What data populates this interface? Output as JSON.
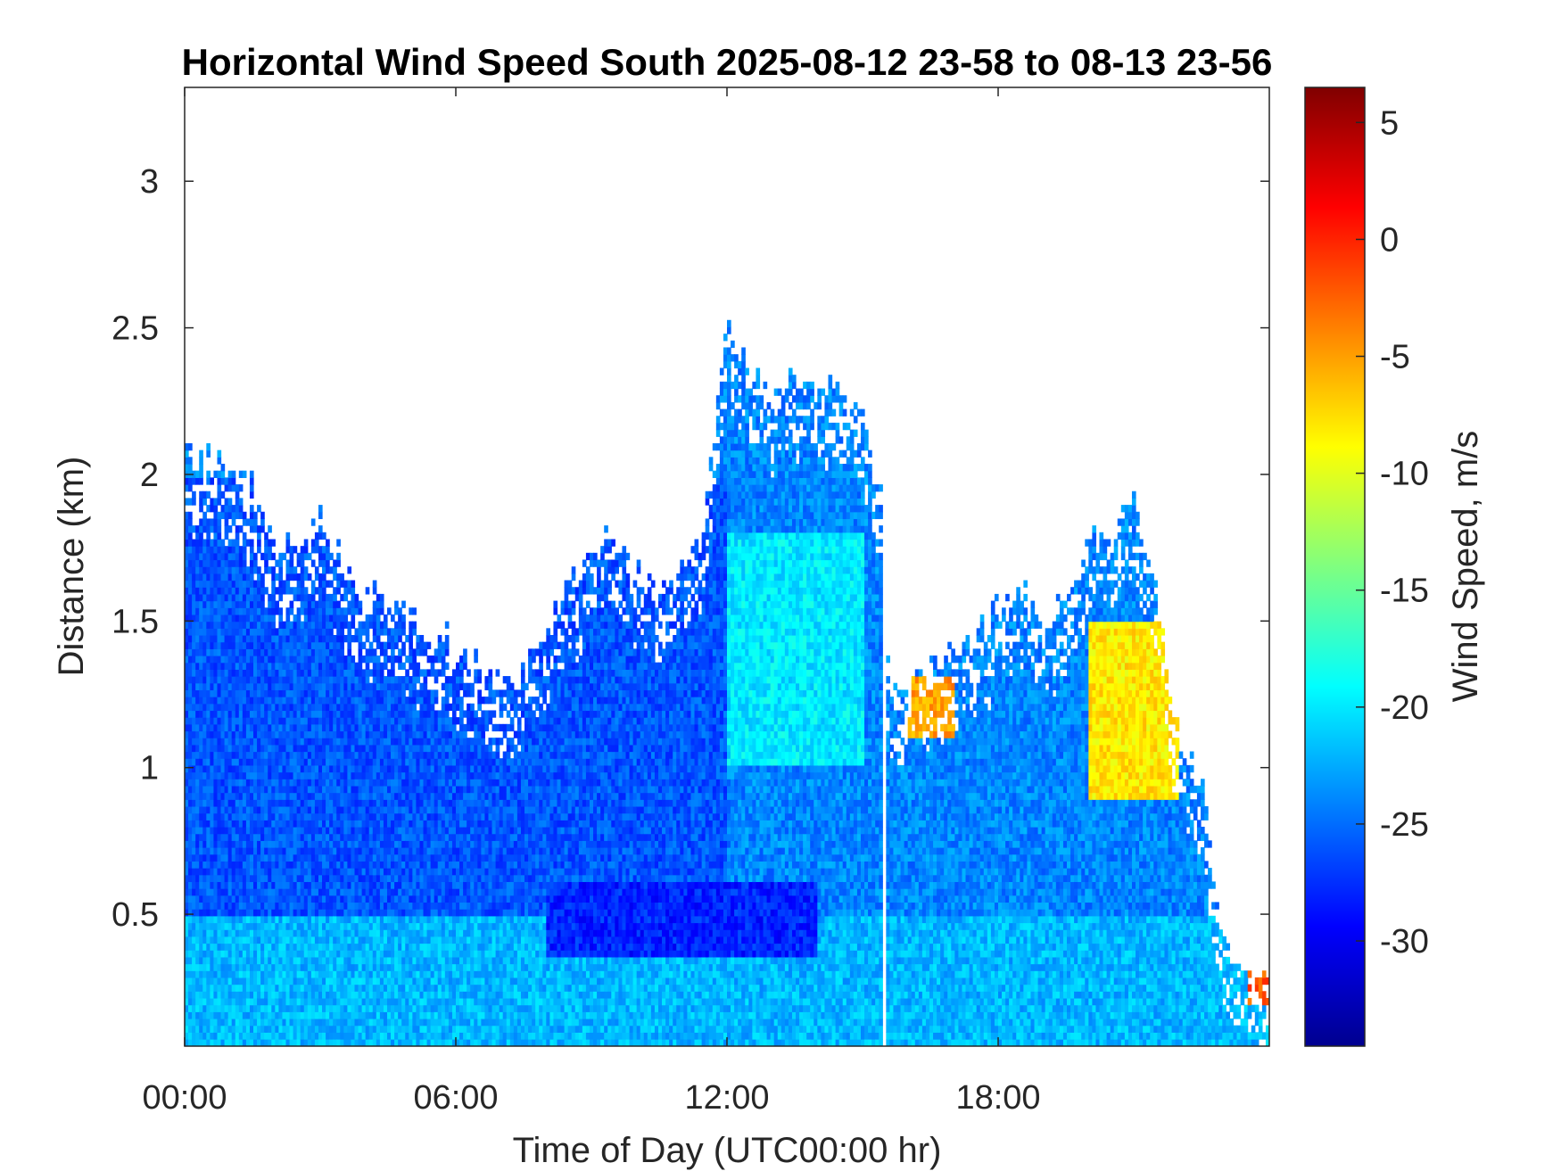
{
  "chart_data": {
    "type": "heatmap",
    "title": "Horizontal Wind Speed South 2025-08-12 23-58 to 08-13 23-56",
    "xlabel": "Time of Day (UTC00:00 hr)",
    "ylabel": "Distance (km)",
    "colorbar_label": "Wind Speed, m/s",
    "colormap": "jet",
    "x_unit": "hours",
    "xlim": [
      0,
      24
    ],
    "ylim": [
      0.05,
      3.32
    ],
    "clim": [
      -34.5,
      6.5
    ],
    "x_ticks": [
      {
        "value": 0,
        "label": "00:00"
      },
      {
        "value": 6,
        "label": "06:00"
      },
      {
        "value": 12,
        "label": "12:00"
      },
      {
        "value": 18,
        "label": "18:00"
      }
    ],
    "y_ticks": [
      {
        "value": 0.5,
        "label": "0.5"
      },
      {
        "value": 1,
        "label": "1"
      },
      {
        "value": 1.5,
        "label": "1.5"
      },
      {
        "value": 2,
        "label": "2"
      },
      {
        "value": 2.5,
        "label": "2.5"
      },
      {
        "value": 3,
        "label": "3"
      }
    ],
    "colorbar_ticks": [
      {
        "value": 5,
        "label": "5"
      },
      {
        "value": 0,
        "label": "0"
      },
      {
        "value": -5,
        "label": "-5"
      },
      {
        "value": -10,
        "label": "-10"
      },
      {
        "value": -15,
        "label": "-15"
      },
      {
        "value": -20,
        "label": "-20"
      },
      {
        "value": -25,
        "label": "-25"
      },
      {
        "value": -30,
        "label": "-30"
      }
    ],
    "data_top_profile": {
      "time_hr": [
        0,
        0.5,
        1,
        1.5,
        2,
        2.5,
        3,
        3.5,
        4,
        4.5,
        5,
        5.5,
        6,
        6.5,
        7,
        7.5,
        8,
        8.5,
        9,
        9.5,
        10,
        10.5,
        11,
        11.5,
        12,
        12.5,
        13,
        13.5,
        14,
        14.5,
        15,
        15.4,
        15.6,
        16,
        16.5,
        17,
        17.5,
        18,
        18.5,
        19,
        19.5,
        20,
        20.5,
        21,
        21.5,
        22,
        22.5,
        23,
        23.5,
        24
      ],
      "top_km": [
        2.1,
        2.05,
        2.0,
        1.95,
        1.75,
        1.8,
        1.85,
        1.7,
        1.6,
        1.55,
        1.5,
        1.45,
        1.42,
        1.35,
        1.3,
        1.3,
        1.5,
        1.6,
        1.75,
        1.8,
        1.65,
        1.6,
        1.7,
        1.8,
        2.5,
        2.35,
        2.3,
        2.35,
        2.35,
        2.25,
        2.2,
        1.9,
        1.3,
        1.3,
        1.35,
        1.4,
        1.45,
        1.55,
        1.6,
        1.5,
        1.55,
        1.75,
        1.8,
        1.9,
        1.6,
        1.1,
        0.95,
        0.4,
        0.3,
        0.35
      ]
    },
    "data_regions": [
      {
        "region": "near-ground layer 0-0.5 km",
        "time_hr": [
          0,
          24
        ],
        "speed_ms": -22
      },
      {
        "region": "main band 0.5-2 km",
        "time_hr": [
          0,
          12
        ],
        "speed_ms": -26
      },
      {
        "region": "afternoon core 1-1.8 km",
        "time_hr": [
          12,
          15
        ],
        "speed_ms": -20
      },
      {
        "region": "strong low-level jet 0.35-0.6 km",
        "time_hr": [
          8,
          14
        ],
        "speed_ms": -28
      },
      {
        "region": "weak winds 1.1-1.3 km",
        "time_hr": [
          16,
          17
        ],
        "speed_ms": -5
      },
      {
        "region": "weak winds 0.9-1.5 km",
        "time_hr": [
          20,
          22
        ],
        "speed_ms": -8
      },
      {
        "region": "weak winds 0.2-0.35 km",
        "time_hr": [
          23.5,
          24
        ],
        "speed_ms": -2
      }
    ],
    "grid": false,
    "legend": "colorbar-right"
  }
}
